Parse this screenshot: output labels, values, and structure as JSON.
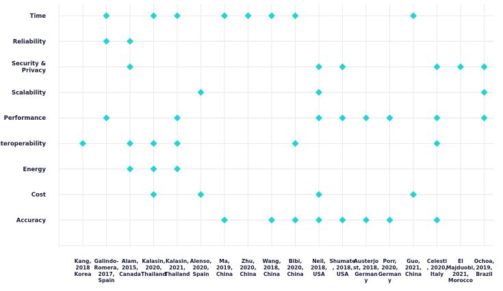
{
  "chart_data": {
    "type": "scatter",
    "title": "",
    "xlabel": "",
    "ylabel": "",
    "grid": true,
    "legend": "none",
    "marker": "diamond",
    "marker_color": "#1ad6d6",
    "categories_y": [
      "Time",
      "Reliability",
      "Security &\nPrivacy",
      "Scalability",
      "Performance",
      "Interoperability",
      "Energy",
      "Cost",
      "Accuracy"
    ],
    "categories_x": [
      "Kang,\n2018\nKorea",
      "Galindo-\nRomera,\n2017,\nSpain",
      "Alam,\n2015,\nCanada",
      "Kalasin,\n2020,\nThailand",
      "Kalasin,\n2021,\nThailand",
      "Alenso,\n2020,\nSpain",
      "Ma,\n2019,\nChina",
      "Zhu,\n2020,\nChina",
      "Wang,\n2018,\nChina",
      "Bibi,\n2020,\nChina",
      "Neil,\n2018,\nUSA",
      "Shumate\n, 2018,\nUSA",
      "Austerjo\nst, 2018,\nGerman\ny",
      "Porr,\n2020,\nGerman\ny",
      "Guo,\n2021,\nChina",
      "Celesti\n, 2020,\nItaly",
      "El\nMajduobi,\n2021,\nMorocco",
      "Ochoa,\n2019,\nBrazil"
    ],
    "points": [
      {
        "x": "Galindo-Romera, 2017, Spain",
        "y": "Time"
      },
      {
        "x": "Kalasin, 2020, Thailand",
        "y": "Time"
      },
      {
        "x": "Kalasin, 2021, Thailand",
        "y": "Time"
      },
      {
        "x": "Ma, 2019, China",
        "y": "Time"
      },
      {
        "x": "Zhu, 2020, China",
        "y": "Time"
      },
      {
        "x": "Wang, 2018, China",
        "y": "Time"
      },
      {
        "x": "Bibi, 2020, China",
        "y": "Time"
      },
      {
        "x": "Guo, 2021, China",
        "y": "Time"
      },
      {
        "x": "Galindo-Romera, 2017, Spain",
        "y": "Reliability"
      },
      {
        "x": "Alam, 2015, Canada",
        "y": "Reliability"
      },
      {
        "x": "Alam, 2015, Canada",
        "y": "Security & Privacy"
      },
      {
        "x": "Neil, 2018, USA",
        "y": "Security & Privacy"
      },
      {
        "x": "Shumate, 2018, USA",
        "y": "Security & Privacy"
      },
      {
        "x": "Celesti, 2020, Italy",
        "y": "Security & Privacy"
      },
      {
        "x": "El Majduobi, 2021, Morocco",
        "y": "Security & Privacy"
      },
      {
        "x": "Ochoa, 2019, Brazil",
        "y": "Security & Privacy"
      },
      {
        "x": "Alenso, 2020, Spain",
        "y": "Scalability"
      },
      {
        "x": "Neil, 2018, USA",
        "y": "Scalability"
      },
      {
        "x": "Ochoa, 2019, Brazil",
        "y": "Scalability"
      },
      {
        "x": "Galindo-Romera, 2017, Spain",
        "y": "Performance"
      },
      {
        "x": "Kalasin, 2021, Thailand",
        "y": "Performance"
      },
      {
        "x": "Neil, 2018, USA",
        "y": "Performance"
      },
      {
        "x": "Shumate, 2018, USA",
        "y": "Performance"
      },
      {
        "x": "Austerjost, 2018, Germany",
        "y": "Performance"
      },
      {
        "x": "Porr, 2020, Germany",
        "y": "Performance"
      },
      {
        "x": "Celesti, 2020, Italy",
        "y": "Performance"
      },
      {
        "x": "Ochoa, 2019, Brazil",
        "y": "Performance"
      },
      {
        "x": "Kang, 2018 Korea",
        "y": "Interoperability"
      },
      {
        "x": "Alam, 2015, Canada",
        "y": "Interoperability"
      },
      {
        "x": "Kalasin, 2020, Thailand",
        "y": "Interoperability"
      },
      {
        "x": "Kalasin, 2021, Thailand",
        "y": "Interoperability"
      },
      {
        "x": "Bibi, 2020, China",
        "y": "Interoperability"
      },
      {
        "x": "Celesti, 2020, Italy",
        "y": "Interoperability"
      },
      {
        "x": "Alam, 2015, Canada",
        "y": "Energy"
      },
      {
        "x": "Kalasin, 2020, Thailand",
        "y": "Energy"
      },
      {
        "x": "Kalasin, 2021, Thailand",
        "y": "Energy"
      },
      {
        "x": "Kalasin, 2020, Thailand",
        "y": "Cost"
      },
      {
        "x": "Alenso, 2020, Spain",
        "y": "Cost"
      },
      {
        "x": "Neil, 2018, USA",
        "y": "Cost"
      },
      {
        "x": "Guo, 2021, China",
        "y": "Cost"
      },
      {
        "x": "Ma, 2019, China",
        "y": "Accuracy"
      },
      {
        "x": "Wang, 2018, China",
        "y": "Accuracy"
      },
      {
        "x": "Bibi, 2020, China",
        "y": "Accuracy"
      },
      {
        "x": "Neil, 2018, USA",
        "y": "Accuracy"
      },
      {
        "x": "Shumate, 2018, USA",
        "y": "Accuracy"
      },
      {
        "x": "Austerjost, 2018, Germany",
        "y": "Accuracy"
      },
      {
        "x": "Porr, 2020, Germany",
        "y": "Accuracy"
      },
      {
        "x": "Celesti, 2020, Italy",
        "y": "Accuracy"
      }
    ]
  }
}
